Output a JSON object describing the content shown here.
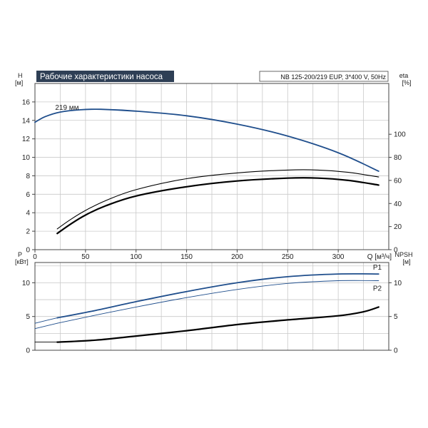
{
  "title": "Рабочие характеристики насоса",
  "model": "NB 125-200/219 EUP, 3*400 V, 50Hz",
  "colors": {
    "blue": "#1f4e8c",
    "black": "#000000",
    "title_bg": "#2e3f55",
    "grid": "#c9c9c9"
  },
  "chart_data": [
    {
      "type": "line",
      "name": "head-efficiency",
      "xlabel": "Q [м³/ч]",
      "xlim": [
        0,
        350
      ],
      "x_ticks": [
        0,
        50,
        100,
        150,
        200,
        250,
        300
      ],
      "y_left": {
        "label": "H",
        "unit": "[м]",
        "lim": [
          0,
          18
        ],
        "ticks": [
          0,
          2,
          4,
          6,
          8,
          10,
          12,
          14,
          16
        ]
      },
      "y_right": {
        "label": "eta",
        "unit": "[%]",
        "lim": [
          0,
          144
        ],
        "ticks": [
          0,
          20,
          40,
          60,
          80,
          100
        ]
      },
      "annotation": "219 мм",
      "grid": true,
      "series": [
        {
          "name": "219 мм",
          "axis": "left",
          "color": "#1f4e8c",
          "width": 1.8,
          "points": [
            [
              0,
              13.8
            ],
            [
              10,
              14.4
            ],
            [
              25,
              14.9
            ],
            [
              45,
              15.15
            ],
            [
              65,
              15.2
            ],
            [
              100,
              15.0
            ],
            [
              150,
              14.5
            ],
            [
              200,
              13.6
            ],
            [
              250,
              12.3
            ],
            [
              300,
              10.5
            ],
            [
              340,
              8.5
            ]
          ]
        },
        {
          "axis": "right",
          "color": "#000000",
          "width": 1.1,
          "points": [
            [
              22,
              18
            ],
            [
              35,
              26
            ],
            [
              50,
              34
            ],
            [
              70,
              42.5
            ],
            [
              100,
              52
            ],
            [
              150,
              61.5
            ],
            [
              200,
              66.5
            ],
            [
              250,
              69
            ],
            [
              280,
              69
            ],
            [
              310,
              67
            ],
            [
              340,
              63
            ]
          ]
        },
        {
          "axis": "right",
          "color": "#000000",
          "width": 2.2,
          "points": [
            [
              22,
              14
            ],
            [
              35,
              22
            ],
            [
              50,
              30
            ],
            [
              70,
              38
            ],
            [
              100,
              46.5
            ],
            [
              150,
              54.5
            ],
            [
              200,
              59.5
            ],
            [
              250,
              62
            ],
            [
              280,
              62
            ],
            [
              310,
              60
            ],
            [
              340,
              56
            ]
          ]
        }
      ]
    },
    {
      "type": "line",
      "name": "power-npsh",
      "xlim": [
        0,
        350
      ],
      "y_left": {
        "label": "P",
        "unit": "[кВт]",
        "lim": [
          0,
          13
        ],
        "ticks": [
          0,
          5,
          10
        ]
      },
      "y_right": {
        "label": "NPSH",
        "unit": "[м]",
        "lim": [
          0,
          13
        ],
        "ticks": [
          0,
          5,
          10
        ]
      },
      "grid": true,
      "series": [
        {
          "name": "P1",
          "axis": "left",
          "color": "#1f4e8c",
          "width": 1.8,
          "points": [
            [
              22,
              4.8
            ],
            [
              60,
              5.9
            ],
            [
              100,
              7.2
            ],
            [
              150,
              8.7
            ],
            [
              200,
              10.0
            ],
            [
              250,
              10.9
            ],
            [
              300,
              11.3
            ],
            [
              340,
              11.3
            ]
          ]
        },
        {
          "axis": "left",
          "color": "#1f4e8c",
          "width": 0.9,
          "points": [
            [
              0,
              4.0
            ],
            [
              22,
              4.8
            ]
          ]
        },
        {
          "name": "P2",
          "axis": "left",
          "color": "#1f4e8c",
          "width": 0.9,
          "points": [
            [
              22,
              4.0
            ],
            [
              60,
              5.2
            ],
            [
              100,
              6.4
            ],
            [
              150,
              7.8
            ],
            [
              200,
              9.0
            ],
            [
              250,
              9.9
            ],
            [
              300,
              10.3
            ],
            [
              340,
              10.3
            ]
          ]
        },
        {
          "axis": "left",
          "color": "#1f4e8c",
          "width": 0.9,
          "points": [
            [
              0,
              3.2
            ],
            [
              22,
              4.0
            ]
          ]
        },
        {
          "axis": "right",
          "color": "#000000",
          "width": 0.9,
          "points": [
            [
              0,
              1.2
            ],
            [
              22,
              1.2
            ]
          ]
        },
        {
          "axis": "right",
          "color": "#000000",
          "width": 2.2,
          "points": [
            [
              22,
              1.2
            ],
            [
              60,
              1.5
            ],
            [
              100,
              2.1
            ],
            [
              150,
              2.9
            ],
            [
              200,
              3.8
            ],
            [
              250,
              4.5
            ],
            [
              300,
              5.1
            ],
            [
              325,
              5.7
            ],
            [
              340,
              6.4
            ]
          ]
        }
      ]
    }
  ]
}
